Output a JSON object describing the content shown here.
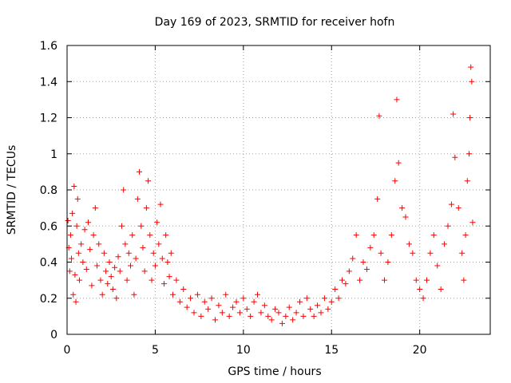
{
  "chart_data": {
    "type": "scatter",
    "title": "Day 169 of 2023, SRMTID for receiver hofn",
    "xlabel": "GPS time / hours",
    "ylabel": "SRMTID / TECUs",
    "xlim": [
      0,
      24
    ],
    "ylim": [
      0,
      1.6
    ],
    "x_ticks": [
      0,
      5,
      10,
      15,
      20
    ],
    "x_tick_labels": [
      "0",
      "5",
      "10",
      "15",
      "20"
    ],
    "y_ticks": [
      0,
      0.2,
      0.4,
      0.6,
      0.8,
      1.0,
      1.2,
      1.4,
      1.6
    ],
    "y_tick_labels": [
      "0",
      "0.2",
      "0.4",
      "0.6",
      "0.8",
      "1",
      "1.2",
      "1.4",
      "1.6"
    ],
    "grid": true,
    "marker": "plus",
    "color": "#ff0000",
    "series": [
      {
        "name": "hofn",
        "points": [
          [
            0.05,
            0.63
          ],
          [
            0.1,
            0.48
          ],
          [
            0.15,
            0.35
          ],
          [
            0.2,
            0.55
          ],
          [
            0.25,
            0.42
          ],
          [
            0.3,
            0.67
          ],
          [
            0.35,
            0.22
          ],
          [
            0.4,
            0.82
          ],
          [
            0.45,
            0.33
          ],
          [
            0.5,
            0.18
          ],
          [
            0.55,
            0.6
          ],
          [
            0.6,
            0.75
          ],
          [
            0.65,
            0.45
          ],
          [
            0.7,
            0.3
          ],
          [
            0.8,
            0.5
          ],
          [
            0.9,
            0.4
          ],
          [
            1.0,
            0.58
          ],
          [
            1.1,
            0.36
          ],
          [
            1.2,
            0.62
          ],
          [
            1.3,
            0.47
          ],
          [
            1.4,
            0.27
          ],
          [
            1.5,
            0.55
          ],
          [
            1.6,
            0.7
          ],
          [
            1.7,
            0.38
          ],
          [
            1.8,
            0.5
          ],
          [
            1.9,
            0.3
          ],
          [
            2.0,
            0.22
          ],
          [
            2.1,
            0.45
          ],
          [
            2.2,
            0.35
          ],
          [
            2.3,
            0.28
          ],
          [
            2.4,
            0.4
          ],
          [
            2.5,
            0.32
          ],
          [
            2.6,
            0.25
          ],
          [
            2.7,
            0.37
          ],
          [
            2.8,
            0.2
          ],
          [
            2.9,
            0.43
          ],
          [
            3.0,
            0.35
          ],
          [
            3.1,
            0.6
          ],
          [
            3.2,
            0.8
          ],
          [
            3.3,
            0.5
          ],
          [
            3.4,
            0.3
          ],
          [
            3.5,
            0.45
          ],
          [
            3.6,
            0.38
          ],
          [
            3.7,
            0.55
          ],
          [
            3.8,
            0.22
          ],
          [
            3.9,
            0.42
          ],
          [
            4.0,
            0.75
          ],
          [
            4.1,
            0.9
          ],
          [
            4.2,
            0.6
          ],
          [
            4.3,
            0.48
          ],
          [
            4.4,
            0.35
          ],
          [
            4.5,
            0.7
          ],
          [
            4.6,
            0.85
          ],
          [
            4.7,
            0.55
          ],
          [
            4.8,
            0.3
          ],
          [
            4.9,
            0.45
          ],
          [
            5.0,
            0.38
          ],
          [
            5.1,
            0.62
          ],
          [
            5.2,
            0.5
          ],
          [
            5.3,
            0.72
          ],
          [
            5.4,
            0.42
          ],
          [
            5.5,
            0.28
          ],
          [
            5.6,
            0.55
          ],
          [
            5.7,
            0.4
          ],
          [
            5.8,
            0.32
          ],
          [
            5.9,
            0.45
          ],
          [
            6.0,
            0.22
          ],
          [
            6.2,
            0.3
          ],
          [
            6.4,
            0.18
          ],
          [
            6.6,
            0.25
          ],
          [
            6.8,
            0.15
          ],
          [
            7.0,
            0.2
          ],
          [
            7.2,
            0.12
          ],
          [
            7.4,
            0.22
          ],
          [
            7.6,
            0.1
          ],
          [
            7.8,
            0.18
          ],
          [
            8.0,
            0.14
          ],
          [
            8.2,
            0.2
          ],
          [
            8.4,
            0.08
          ],
          [
            8.6,
            0.16
          ],
          [
            8.8,
            0.12
          ],
          [
            9.0,
            0.22
          ],
          [
            9.2,
            0.1
          ],
          [
            9.4,
            0.15
          ],
          [
            9.6,
            0.18
          ],
          [
            9.8,
            0.12
          ],
          [
            10.0,
            0.2
          ],
          [
            10.2,
            0.14
          ],
          [
            10.4,
            0.1
          ],
          [
            10.6,
            0.18
          ],
          [
            10.8,
            0.22
          ],
          [
            11.0,
            0.12
          ],
          [
            11.2,
            0.16
          ],
          [
            11.4,
            0.1
          ],
          [
            11.6,
            0.08
          ],
          [
            11.8,
            0.14
          ],
          [
            12.0,
            0.12
          ],
          [
            12.2,
            0.06
          ],
          [
            12.4,
            0.1
          ],
          [
            12.6,
            0.15
          ],
          [
            12.8,
            0.08
          ],
          [
            13.0,
            0.12
          ],
          [
            13.2,
            0.18
          ],
          [
            13.4,
            0.1
          ],
          [
            13.6,
            0.2
          ],
          [
            13.8,
            0.14
          ],
          [
            14.0,
            0.1
          ],
          [
            14.2,
            0.16
          ],
          [
            14.4,
            0.12
          ],
          [
            14.6,
            0.2
          ],
          [
            14.8,
            0.14
          ],
          [
            15.0,
            0.18
          ],
          [
            15.2,
            0.25
          ],
          [
            15.4,
            0.2
          ],
          [
            15.6,
            0.3
          ],
          [
            15.8,
            0.28
          ],
          [
            16.0,
            0.35
          ],
          [
            16.2,
            0.42
          ],
          [
            16.4,
            0.55
          ],
          [
            16.6,
            0.3
          ],
          [
            16.8,
            0.4
          ],
          [
            17.0,
            0.36
          ],
          [
            17.2,
            0.48
          ],
          [
            17.4,
            0.55
          ],
          [
            17.6,
            0.75
          ],
          [
            17.7,
            1.21
          ],
          [
            17.8,
            0.45
          ],
          [
            18.0,
            0.3
          ],
          [
            18.2,
            0.4
          ],
          [
            18.4,
            0.55
          ],
          [
            18.6,
            0.85
          ],
          [
            18.7,
            1.3
          ],
          [
            18.8,
            0.95
          ],
          [
            19.0,
            0.7
          ],
          [
            19.2,
            0.65
          ],
          [
            19.4,
            0.5
          ],
          [
            19.6,
            0.45
          ],
          [
            19.8,
            0.3
          ],
          [
            20.0,
            0.25
          ],
          [
            20.2,
            0.2
          ],
          [
            20.4,
            0.3
          ],
          [
            20.6,
            0.45
          ],
          [
            20.8,
            0.55
          ],
          [
            21.0,
            0.38
          ],
          [
            21.2,
            0.25
          ],
          [
            21.4,
            0.5
          ],
          [
            21.6,
            0.6
          ],
          [
            21.8,
            0.72
          ],
          [
            21.9,
            1.22
          ],
          [
            22.0,
            0.98
          ],
          [
            22.2,
            0.7
          ],
          [
            22.4,
            0.45
          ],
          [
            22.5,
            0.3
          ],
          [
            22.6,
            0.55
          ],
          [
            22.7,
            0.85
          ],
          [
            22.8,
            1.0
          ],
          [
            22.85,
            1.2
          ],
          [
            22.9,
            1.48
          ],
          [
            22.95,
            1.4
          ],
          [
            23.0,
            0.62
          ]
        ]
      }
    ]
  }
}
